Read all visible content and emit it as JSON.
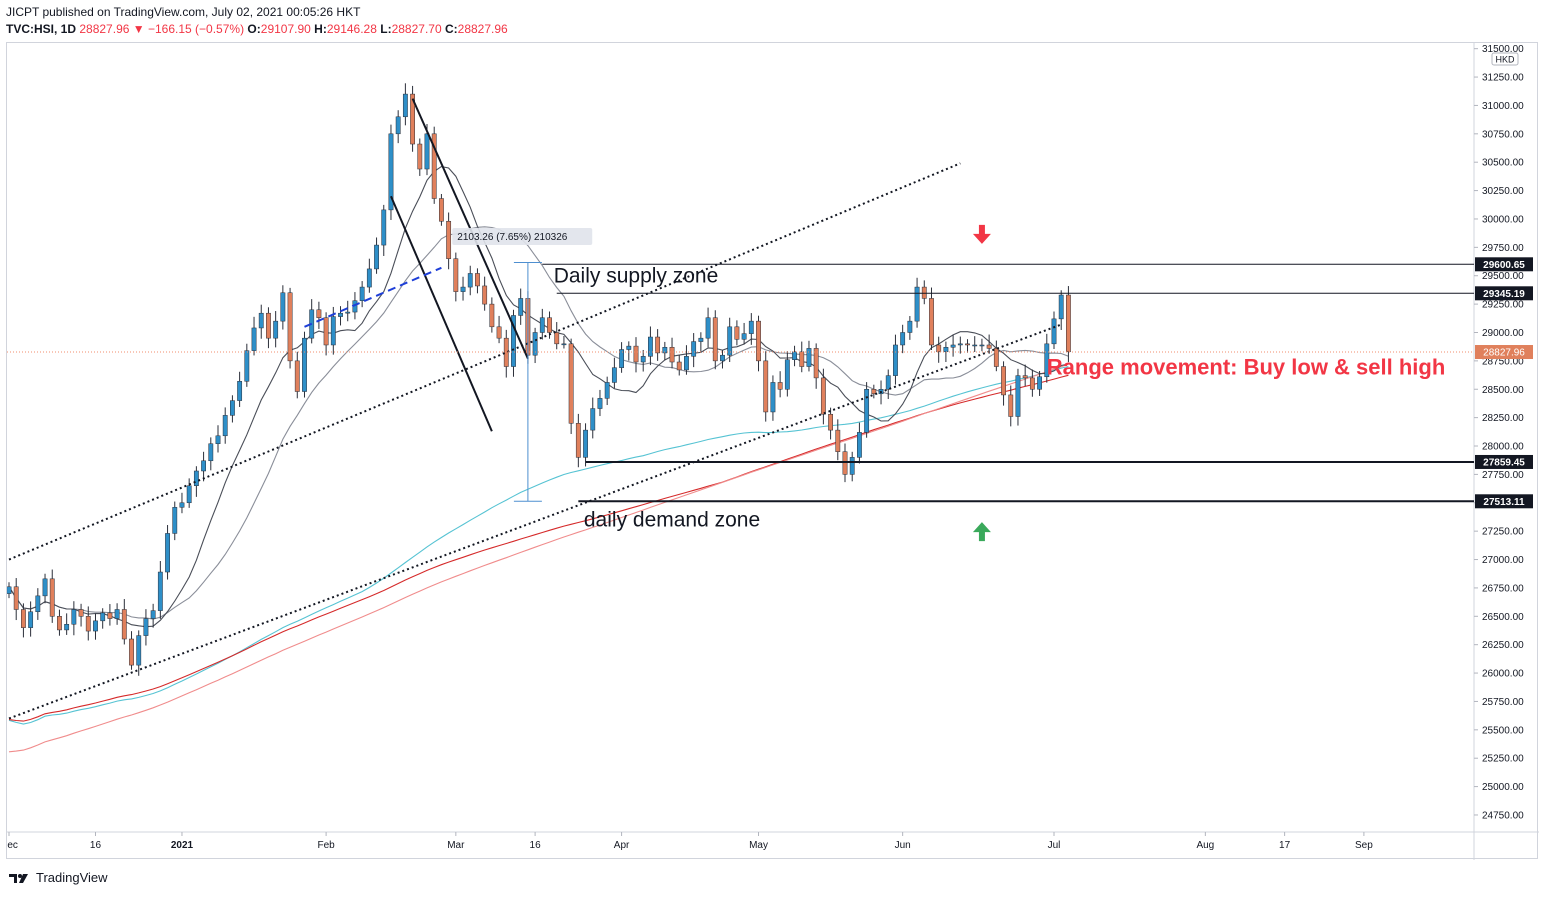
{
  "header": {
    "publisher": "JICPT published on TradingView.com, July 02, 2021 00:05:26 HKT",
    "symbol": "TVC:HSI, 1D",
    "last": "28827.96",
    "change": "−166.15 (−0.57%)",
    "o_label": "O:",
    "o_value": "29107.90",
    "h_label": "H:",
    "h_value": "29146.28",
    "l_label": "L:",
    "l_value": "28827.70",
    "c_label": "C:",
    "c_value": "28827.96"
  },
  "footer": {
    "brand": "TradingView"
  },
  "colors": {
    "bull": "#2e8fc8",
    "bear": "#e0805c",
    "text_red": "#f23645",
    "arrow_green": "#3aa95b",
    "ma_red": "#d52a2a",
    "ma_pink": "#f08c8c",
    "ma_cyan": "#56c3d3",
    "ma_gray": "#8a8e99",
    "measure": "#4e8fd0"
  },
  "chart_data": {
    "type": "candlestick",
    "currency_label": "HKD",
    "ylim": [
      24600,
      31550
    ],
    "y_ticks": [
      "31500.00",
      "31250.00",
      "31000.00",
      "30750.00",
      "30500.00",
      "30250.00",
      "30000.00",
      "29750.00",
      "29500.00",
      "29250.00",
      "29000.00",
      "28750.00",
      "28500.00",
      "28250.00",
      "28000.00",
      "27750.00",
      "27500.00",
      "27250.00",
      "27000.00",
      "26750.00",
      "26500.00",
      "26250.00",
      "26000.00",
      "25750.00",
      "25500.00",
      "25250.00",
      "25000.00",
      "24750.00"
    ],
    "x_labels": [
      {
        "label": "Dec",
        "day": 0,
        "bold": false
      },
      {
        "label": "16",
        "day": 12,
        "bold": false
      },
      {
        "label": "2021",
        "day": 24,
        "bold": true
      },
      {
        "label": "Feb",
        "day": 44,
        "bold": false
      },
      {
        "label": "Mar",
        "day": 62,
        "bold": false
      },
      {
        "label": "16",
        "day": 73,
        "bold": false
      },
      {
        "label": "Apr",
        "day": 85,
        "bold": false
      },
      {
        "label": "May",
        "day": 104,
        "bold": false
      },
      {
        "label": "Jun",
        "day": 124,
        "bold": false
      },
      {
        "label": "Jul",
        "day": 145,
        "bold": false
      },
      {
        "label": "Aug",
        "day": 166,
        "bold": false
      },
      {
        "label": "17",
        "day": 177,
        "bold": false
      },
      {
        "label": "Sep",
        "day": 188,
        "bold": false
      }
    ],
    "x_range_days": [
      0,
      203
    ],
    "close": [
      26760,
      26560,
      26400,
      26540,
      26680,
      26830,
      26500,
      26380,
      26430,
      26560,
      26500,
      26370,
      26460,
      26530,
      26480,
      26560,
      26300,
      26070,
      26330,
      26480,
      26550,
      26890,
      27230,
      27460,
      27500,
      27650,
      27780,
      27870,
      28020,
      28090,
      28270,
      28400,
      28570,
      28840,
      29040,
      29170,
      28950,
      29100,
      29350,
      28750,
      28480,
      28950,
      29200,
      29130,
      28890,
      29140,
      29170,
      29180,
      29280,
      29400,
      29560,
      29770,
      30080,
      30750,
      30900,
      31100,
      30660,
      30440,
      30750,
      30180,
      29980,
      29650,
      29360,
      29400,
      29520,
      29410,
      29250,
      29050,
      28950,
      28700,
      29150,
      29300,
      28800,
      29000,
      29130,
      29000,
      28900,
      28900,
      28200,
      27900,
      28140,
      28330,
      28420,
      28560,
      28690,
      28850,
      28880,
      28740,
      28790,
      28960,
      28820,
      28870,
      28740,
      28670,
      28790,
      28920,
      28950,
      29130,
      28750,
      28800,
      29050,
      28940,
      28990,
      29100,
      28750,
      28300,
      28560,
      28500,
      28760,
      28830,
      28700,
      28860,
      28600,
      28280,
      28140,
      27950,
      27750,
      27900,
      28120,
      28500,
      28460,
      28500,
      28620,
      28890,
      29000,
      29100,
      29400,
      29300,
      28890,
      28830,
      28870,
      28890,
      28900,
      28890,
      28890,
      28890,
      28860,
      28700,
      28450,
      28260,
      28620,
      28600,
      28500,
      28610,
      28900,
      29120,
      29330,
      28830
    ],
    "candles_drawn_from_close_series": true,
    "moving_averages": [
      {
        "name": "MA short",
        "color": "gray"
      },
      {
        "name": "MA medium",
        "color": "gray-dark"
      },
      {
        "name": "MA 50",
        "color": "cyan"
      },
      {
        "name": "MA 100",
        "color": "red"
      },
      {
        "name": "MA 200",
        "color": "pink"
      }
    ],
    "levels": [
      {
        "label": "29600.65",
        "value": 29600.65,
        "style": "thin",
        "start_day": 74
      },
      {
        "label": "29345.19",
        "value": 29345.19,
        "style": "thin",
        "start_day": 76
      },
      {
        "label": "27859.45",
        "value": 27859.45,
        "style": "bold",
        "start_day": 80
      },
      {
        "label": "27513.11",
        "value": 27513.11,
        "style": "bold",
        "start_day": 79
      }
    ],
    "last_price": {
      "label": "28827.96",
      "value": 28827.96
    },
    "measure": {
      "label": "2103.26 (7.65%) 210326",
      "day": 72,
      "from": 27513.11,
      "to": 29616.37
    },
    "trendlines": [
      {
        "style": "dotted",
        "from": [
          0,
          27000
        ],
        "to": [
          132,
          30490
        ]
      },
      {
        "style": "dotted",
        "from": [
          0,
          25600
        ],
        "to": [
          146,
          29070
        ]
      },
      {
        "style": "solid",
        "from": [
          53,
          30200
        ],
        "to": [
          67,
          28130
        ]
      },
      {
        "style": "solid",
        "from": [
          56,
          31060
        ],
        "to": [
          72,
          28770
        ]
      },
      {
        "style": "dashed-blue",
        "from": [
          41,
          29050
        ],
        "to": [
          60,
          29570
        ]
      }
    ],
    "annotations": [
      {
        "text": "Daily supply zone",
        "day": 87,
        "value": 29440,
        "color": "black"
      },
      {
        "text": "daily demand zone",
        "day": 92,
        "value": 27290,
        "color": "black"
      },
      {
        "text": "Range movement: Buy low & sell high",
        "day": 144,
        "value": 28630,
        "color": "red"
      }
    ],
    "arrows": [
      {
        "direction": "down",
        "day": 135,
        "value": 29860,
        "color": "red"
      },
      {
        "direction": "up",
        "day": 135,
        "value": 27250,
        "color": "green"
      }
    ]
  }
}
